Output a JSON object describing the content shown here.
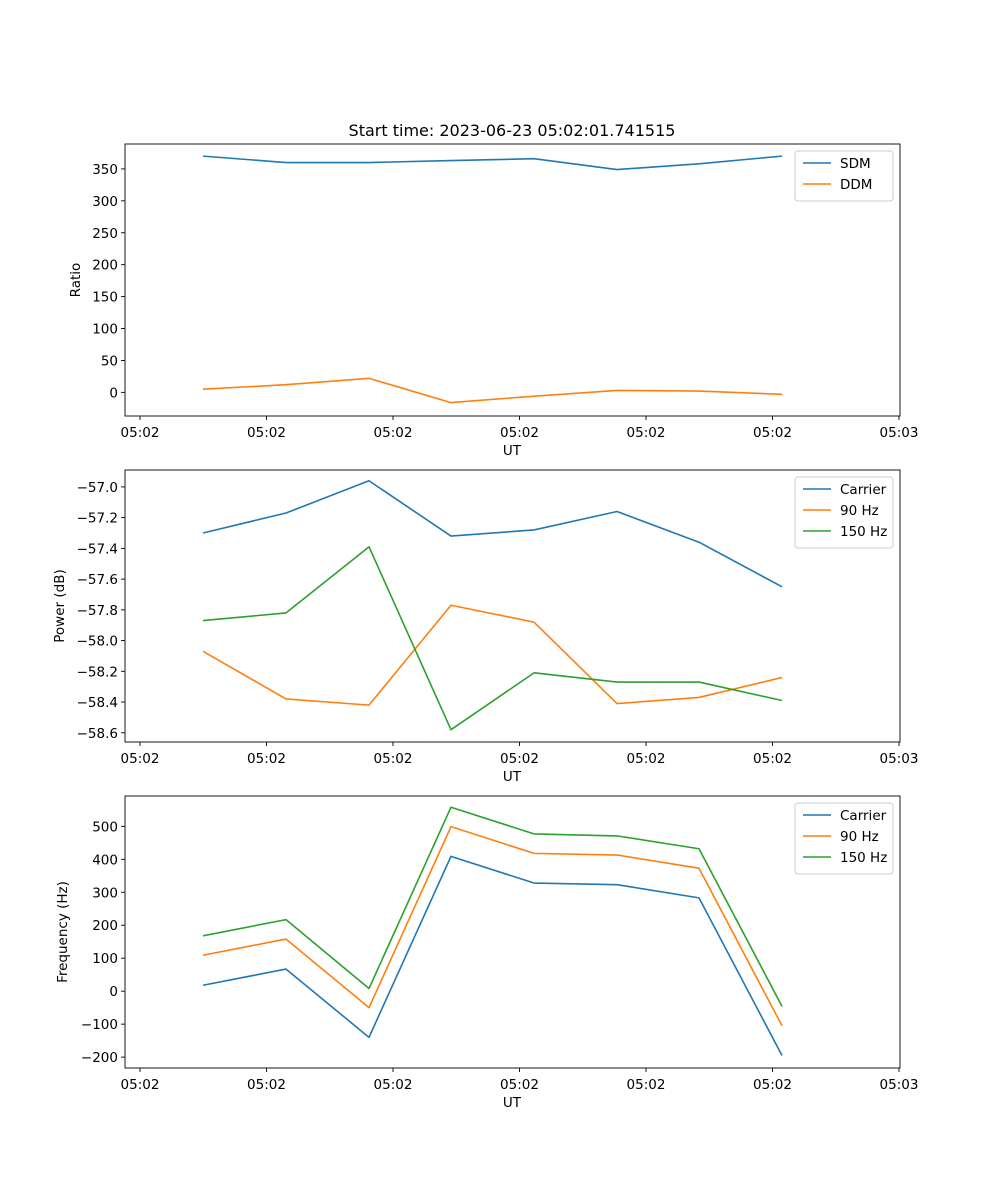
{
  "figure": {
    "title": "Start time: 2023-06-23 05:02:01.741515"
  },
  "chart_data": [
    {
      "type": "line",
      "xlabel": "UT",
      "ylabel": "Ratio",
      "x_tick_labels": [
        "05:02",
        "05:02",
        "05:02",
        "05:02",
        "05:02",
        "05:02",
        "05:03"
      ],
      "y_ticks": [
        0,
        50,
        100,
        150,
        200,
        250,
        300,
        350
      ],
      "ylim": [
        -37,
        389
      ],
      "x_point_count": 8,
      "legend_position": "upper right",
      "series": [
        {
          "name": "SDM",
          "color": "#1f77b4",
          "values": [
            370,
            360,
            360,
            363,
            366,
            349,
            358,
            370
          ]
        },
        {
          "name": "DDM",
          "color": "#ff7f0e",
          "values": [
            5,
            12,
            22,
            -16,
            -6,
            3,
            2,
            -3
          ]
        }
      ]
    },
    {
      "type": "line",
      "xlabel": "UT",
      "ylabel": "Power (dB)",
      "x_tick_labels": [
        "05:02",
        "05:02",
        "05:02",
        "05:02",
        "05:02",
        "05:02",
        "05:03"
      ],
      "y_ticks": [
        -57.0,
        -57.2,
        -57.4,
        -57.6,
        -57.8,
        -58.0,
        -58.2,
        -58.4,
        -58.6
      ],
      "y_tick_labels": [
        "−57.0",
        "−57.2",
        "−57.4",
        "−57.6",
        "−57.8",
        "−58.0",
        "−58.2",
        "−58.4",
        "−58.6"
      ],
      "ylim": [
        -58.66,
        -56.89
      ],
      "x_point_count": 8,
      "legend_position": "upper right",
      "series": [
        {
          "name": "Carrier",
          "color": "#1f77b4",
          "values": [
            -57.3,
            -57.17,
            -56.96,
            -57.32,
            -57.28,
            -57.16,
            -57.36,
            -57.65
          ]
        },
        {
          "name": "90 Hz",
          "color": "#ff7f0e",
          "values": [
            -58.07,
            -58.38,
            -58.42,
            -57.77,
            -57.88,
            -58.41,
            -58.37,
            -58.24
          ]
        },
        {
          "name": "150 Hz",
          "color": "#2ca02c",
          "values": [
            -57.87,
            -57.82,
            -57.39,
            -58.58,
            -58.21,
            -58.27,
            -58.27,
            -58.39
          ]
        }
      ]
    },
    {
      "type": "line",
      "xlabel": "UT",
      "ylabel": "Frequency (Hz)",
      "x_tick_labels": [
        "05:02",
        "05:02",
        "05:02",
        "05:02",
        "05:02",
        "05:02",
        "05:03"
      ],
      "y_ticks": [
        -200,
        -100,
        0,
        100,
        200,
        300,
        400,
        500
      ],
      "y_tick_labels": [
        "−200",
        "−100",
        "0",
        "100",
        "200",
        "300",
        "400",
        "500"
      ],
      "ylim": [
        -233,
        592
      ],
      "x_point_count": 8,
      "legend_position": "upper right",
      "series": [
        {
          "name": "Carrier",
          "color": "#1f77b4",
          "values": [
            18,
            67,
            -140,
            409,
            328,
            323,
            283,
            -195
          ]
        },
        {
          "name": "90 Hz",
          "color": "#ff7f0e",
          "values": [
            109,
            158,
            -50,
            499,
            418,
            413,
            373,
            -105
          ]
        },
        {
          "name": "150 Hz",
          "color": "#2ca02c",
          "values": [
            168,
            217,
            8,
            558,
            477,
            471,
            432,
            -46
          ]
        }
      ]
    }
  ]
}
